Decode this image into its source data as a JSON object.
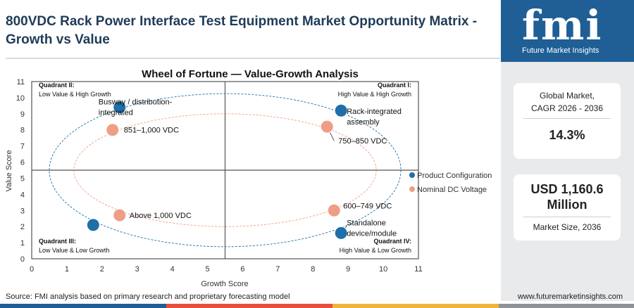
{
  "header": {
    "title": "800VDC Rack Power Interface Test Equipment Market Opportunity Matrix - Growth vs Value"
  },
  "brand": {
    "logo_text": "fmi",
    "tagline": "Future Market Insights"
  },
  "stats": {
    "cagr_label_1": "Global Market,",
    "cagr_label_2": "CAGR 2026 - 2036",
    "cagr_value": "14.3%",
    "size_value_1": "USD 1,160.6",
    "size_value_2": "Million",
    "size_label": "Market Size, 2036"
  },
  "footer": {
    "source": "Source: FMI analysis based on primary research and proprietary forecasting model",
    "url": "www.futuremarketinsights.com"
  },
  "colors": {
    "config": "#1f6fa8",
    "voltage": "#ef9e85",
    "brand": "#1f5f96"
  },
  "chart_data": {
    "type": "scatter",
    "title": "Wheel of Fortune — Value-Growth Analysis",
    "xlabel": "Growth Score",
    "ylabel": "Value Score",
    "xlim": [
      0,
      11
    ],
    "ylim": [
      0,
      11
    ],
    "xticks": [
      "0",
      "1",
      "2",
      "3",
      "4",
      "5",
      "6",
      "7",
      "8",
      "9",
      "10",
      "11"
    ],
    "yticks": [
      "0",
      "1",
      "2",
      "3",
      "4",
      "5",
      "6",
      "7",
      "8",
      "9",
      "10",
      "11"
    ],
    "grid": false,
    "legend_position": "right",
    "quadrants": [
      {
        "title": "Quadrant II:",
        "subtitle": "Low Value & High Growth"
      },
      {
        "title": "Quadrant I:",
        "subtitle": "High Value & High Growth"
      },
      {
        "title": "Quadrant III:",
        "subtitle": "Low Value & Low Growth"
      },
      {
        "title": "Quadrant IV:",
        "subtitle": "High Value & Low Growth"
      }
    ],
    "series": [
      {
        "name": "Product Configuration",
        "color": "#1f6fa8",
        "points": [
          {
            "label": "Busway / distribution-integrated",
            "x": 2.5,
            "y": 9.4
          },
          {
            "label": "Rack-integrated assembly",
            "x": 8.8,
            "y": 9.2
          },
          {
            "label": "Standalone device/module",
            "x": 8.8,
            "y": 1.6
          },
          {
            "label": "",
            "x": 1.75,
            "y": 2.1
          }
        ]
      },
      {
        "name": "Nominal DC Voltage",
        "color": "#ef9e85",
        "points": [
          {
            "label": "851–1,000 VDC",
            "x": 2.3,
            "y": 8.0
          },
          {
            "label": "750–850 VDC",
            "x": 8.4,
            "y": 8.2
          },
          {
            "label": "Above 1,000 VDC",
            "x": 2.5,
            "y": 2.7
          },
          {
            "label": "600–749 VDC",
            "x": 8.6,
            "y": 3.0
          }
        ]
      }
    ]
  }
}
